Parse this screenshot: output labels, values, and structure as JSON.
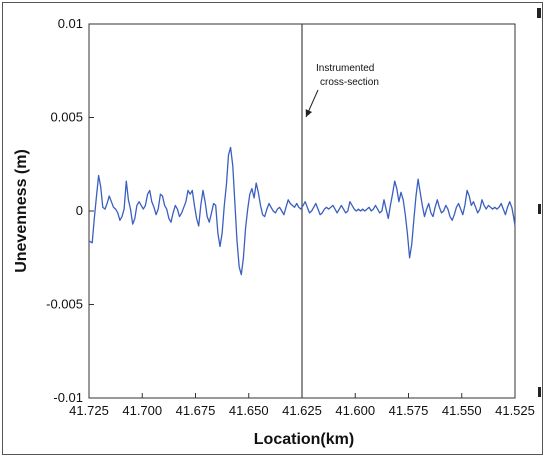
{
  "chart_data": {
    "type": "line",
    "xlabel": "Location(km)",
    "ylabel": "Unevenness (m)",
    "xlim": [
      41.725,
      41.525
    ],
    "x_reversed": true,
    "ylim": [
      -0.01,
      0.01
    ],
    "x_ticks": [
      41.725,
      41.7,
      41.675,
      41.65,
      41.625,
      41.6,
      41.575,
      41.55,
      41.525
    ],
    "x_tick_labels": [
      "41.725",
      "41.700",
      "41.675",
      "41.650",
      "41.625",
      "41.600",
      "41.575",
      "41.550",
      "41.525"
    ],
    "y_ticks": [
      0.01,
      0.005,
      0,
      -0.005,
      -0.01
    ],
    "y_tick_labels": [
      "0.01",
      "0.005",
      "0",
      "-0.005",
      "-0.01"
    ],
    "grid": false,
    "line_color": "#3b5fc0",
    "annotation": {
      "lines": [
        "Instrumented",
        "cross-section"
      ],
      "x": 41.625,
      "marker_color": "#444444"
    },
    "series": [
      {
        "points": [
          [
            41.725,
            -0.0016
          ],
          [
            41.7235,
            -0.0017
          ],
          [
            41.7225,
            -0.0004
          ],
          [
            41.7215,
            0.0008
          ],
          [
            41.7205,
            0.0019
          ],
          [
            41.7195,
            0.0013
          ],
          [
            41.7185,
            0.0002
          ],
          [
            41.7175,
            0.0001
          ],
          [
            41.7165,
            0.0004
          ],
          [
            41.7155,
            0.0008
          ],
          [
            41.7145,
            0.0005
          ],
          [
            41.7135,
            0.0002
          ],
          [
            41.7125,
            0.0001
          ],
          [
            41.7115,
            -0.0001
          ],
          [
            41.7105,
            -0.0005
          ],
          [
            41.7095,
            -0.0003
          ],
          [
            41.7085,
            0.0001
          ],
          [
            41.7075,
            0.0016
          ],
          [
            41.7065,
            0.0006
          ],
          [
            41.7055,
            0.0001
          ],
          [
            41.7045,
            -0.0007
          ],
          [
            41.7035,
            -0.0004
          ],
          [
            41.7025,
            0.0003
          ],
          [
            41.7015,
            0.0005
          ],
          [
            41.7005,
            0.0003
          ],
          [
            41.6995,
            0.0001
          ],
          [
            41.6985,
            0.0003
          ],
          [
            41.6975,
            0.0009
          ],
          [
            41.6965,
            0.0011
          ],
          [
            41.6955,
            0.0005
          ],
          [
            41.6945,
            0.0002
          ],
          [
            41.6935,
            -0.0002
          ],
          [
            41.6925,
            0.0001
          ],
          [
            41.6915,
            0.0009
          ],
          [
            41.6905,
            0.0008
          ],
          [
            41.6895,
            0.0003
          ],
          [
            41.6885,
            0.0001
          ],
          [
            41.6875,
            -0.0004
          ],
          [
            41.6865,
            -0.0006
          ],
          [
            41.6855,
            -0.0001
          ],
          [
            41.6845,
            0.0003
          ],
          [
            41.6835,
            0.0001
          ],
          [
            41.6825,
            -0.0003
          ],
          [
            41.6815,
            -0.0001
          ],
          [
            41.6805,
            0.0002
          ],
          [
            41.6795,
            0.0005
          ],
          [
            41.6785,
            0.0011
          ],
          [
            41.6775,
            0.0009
          ],
          [
            41.6765,
            0.0011
          ],
          [
            41.6755,
            0.0003
          ],
          [
            41.6745,
            -0.0004
          ],
          [
            41.6735,
            -0.0008
          ],
          [
            41.6725,
            0.0003
          ],
          [
            41.6715,
            0.0011
          ],
          [
            41.6705,
            0.0005
          ],
          [
            41.6695,
            -0.0003
          ],
          [
            41.6685,
            -0.0006
          ],
          [
            41.6675,
            -0.0001
          ],
          [
            41.6665,
            0.0004
          ],
          [
            41.6655,
            0.0003
          ],
          [
            41.6645,
            -0.0012
          ],
          [
            41.6635,
            -0.0019
          ],
          [
            41.6625,
            -0.0012
          ],
          [
            41.6615,
            0.0003
          ],
          [
            41.6605,
            0.0014
          ],
          [
            41.6595,
            0.003
          ],
          [
            41.6585,
            0.0034
          ],
          [
            41.6575,
            0.0024
          ],
          [
            41.6565,
            0.0004
          ],
          [
            41.6555,
            -0.0016
          ],
          [
            41.6545,
            -0.003
          ],
          [
            41.6535,
            -0.0034
          ],
          [
            41.6525,
            -0.0025
          ],
          [
            41.6515,
            -0.0009
          ],
          [
            41.6505,
            0.0001
          ],
          [
            41.6495,
            0.0009
          ],
          [
            41.6485,
            0.0012
          ],
          [
            41.6475,
            0.0007
          ],
          [
            41.6465,
            0.0015
          ],
          [
            41.6455,
            0.001
          ],
          [
            41.6445,
            0.0003
          ],
          [
            41.6435,
            -0.0002
          ],
          [
            41.6425,
            -0.0003
          ],
          [
            41.6415,
            0.0001
          ],
          [
            41.6405,
            0.0004
          ],
          [
            41.6395,
            0.0002
          ],
          [
            41.6385,
            0.0
          ],
          [
            41.6375,
            -0.0001
          ],
          [
            41.6365,
            0.0001
          ],
          [
            41.6355,
            0.0002
          ],
          [
            41.6345,
            0.0
          ],
          [
            41.6335,
            -0.0002
          ],
          [
            41.6325,
            0.0002
          ],
          [
            41.6315,
            0.0006
          ],
          [
            41.6305,
            0.0004
          ],
          [
            41.6295,
            0.0003
          ],
          [
            41.6285,
            0.0002
          ],
          [
            41.6275,
            0.0004
          ],
          [
            41.6265,
            0.0002
          ],
          [
            41.6255,
            0.0001
          ],
          [
            41.6245,
            0.0003
          ],
          [
            41.6235,
            0.0005
          ],
          [
            41.6225,
            0.0002
          ],
          [
            41.6215,
            -0.0001
          ],
          [
            41.6205,
            0.0
          ],
          [
            41.6195,
            0.0002
          ],
          [
            41.6185,
            0.0004
          ],
          [
            41.6175,
            0.0001
          ],
          [
            41.6165,
            -0.0002
          ],
          [
            41.6155,
            -0.0001
          ],
          [
            41.6145,
            0.0001
          ],
          [
            41.6135,
            0.0002
          ],
          [
            41.6125,
            0.0001
          ],
          [
            41.6115,
            0.0002
          ],
          [
            41.6105,
            0.0003
          ],
          [
            41.6095,
            0.0001
          ],
          [
            41.6085,
            -0.0001
          ],
          [
            41.6075,
            0.0001
          ],
          [
            41.6065,
            0.0003
          ],
          [
            41.6055,
            0.0001
          ],
          [
            41.6045,
            -0.0001
          ],
          [
            41.6035,
            0.0
          ],
          [
            41.6025,
            0.0005
          ],
          [
            41.6015,
            0.0003
          ],
          [
            41.6005,
            0.0001
          ],
          [
            41.5995,
            0.0
          ],
          [
            41.5985,
            0.0001
          ],
          [
            41.5975,
            0.0
          ],
          [
            41.5965,
            0.0001
          ],
          [
            41.5955,
            0.0
          ],
          [
            41.5945,
            0.0001
          ],
          [
            41.5935,
            0.0002
          ],
          [
            41.5925,
            0.0
          ],
          [
            41.5915,
            0.0001
          ],
          [
            41.5905,
            0.0003
          ],
          [
            41.5895,
            0.0001
          ],
          [
            41.5885,
            -0.0001
          ],
          [
            41.5875,
            0.0
          ],
          [
            41.5865,
            0.0006
          ],
          [
            41.5855,
            0.0001
          ],
          [
            41.5845,
            -0.0004
          ],
          [
            41.5835,
            0.0003
          ],
          [
            41.5825,
            0.0009
          ],
          [
            41.5815,
            0.0016
          ],
          [
            41.5805,
            0.0012
          ],
          [
            41.5795,
            0.0005
          ],
          [
            41.5785,
            0.001
          ],
          [
            41.5775,
            0.0006
          ],
          [
            41.5765,
            -0.0002
          ],
          [
            41.5755,
            -0.0012
          ],
          [
            41.5745,
            -0.0025
          ],
          [
            41.5735,
            -0.0018
          ],
          [
            41.5725,
            -0.0005
          ],
          [
            41.5715,
            0.0008
          ],
          [
            41.5705,
            0.0017
          ],
          [
            41.5695,
            0.001
          ],
          [
            41.5685,
            0.0003
          ],
          [
            41.5675,
            -0.0003
          ],
          [
            41.5665,
            0.0001
          ],
          [
            41.5655,
            0.0004
          ],
          [
            41.5645,
            -0.0001
          ],
          [
            41.5635,
            -0.0003
          ],
          [
            41.5625,
            0.0002
          ],
          [
            41.5615,
            0.0006
          ],
          [
            41.5605,
            0.0002
          ],
          [
            41.5595,
            -0.0001
          ],
          [
            41.5585,
            0.0
          ],
          [
            41.5575,
            0.0003
          ],
          [
            41.5565,
            0.0001
          ],
          [
            41.5555,
            -0.0003
          ],
          [
            41.5545,
            -0.0005
          ],
          [
            41.5535,
            -0.0002
          ],
          [
            41.5525,
            0.0002
          ],
          [
            41.5515,
            0.0004
          ],
          [
            41.5505,
            0.0001
          ],
          [
            41.5495,
            -0.0002
          ],
          [
            41.5485,
            0.0003
          ],
          [
            41.5475,
            0.0011
          ],
          [
            41.5465,
            0.0008
          ],
          [
            41.5455,
            0.0003
          ],
          [
            41.5445,
            0.0005
          ],
          [
            41.5435,
            0.0002
          ],
          [
            41.5425,
            -0.0001
          ],
          [
            41.5415,
            0.0001
          ],
          [
            41.5405,
            0.0006
          ],
          [
            41.5395,
            0.0003
          ],
          [
            41.5385,
            0.0001
          ],
          [
            41.5375,
            0.0003
          ],
          [
            41.5365,
            0.0002
          ],
          [
            41.5355,
            0.0001
          ],
          [
            41.5345,
            0.0002
          ],
          [
            41.5335,
            0.0001
          ],
          [
            41.5325,
            0.0002
          ],
          [
            41.5315,
            0.0004
          ],
          [
            41.5305,
            0.0001
          ],
          [
            41.5295,
            -0.0002
          ],
          [
            41.5285,
            0.0002
          ],
          [
            41.5275,
            0.0005
          ],
          [
            41.5265,
            0.0002
          ],
          [
            41.5255,
            -0.0004
          ],
          [
            41.525,
            -0.0008
          ]
        ]
      }
    ]
  }
}
